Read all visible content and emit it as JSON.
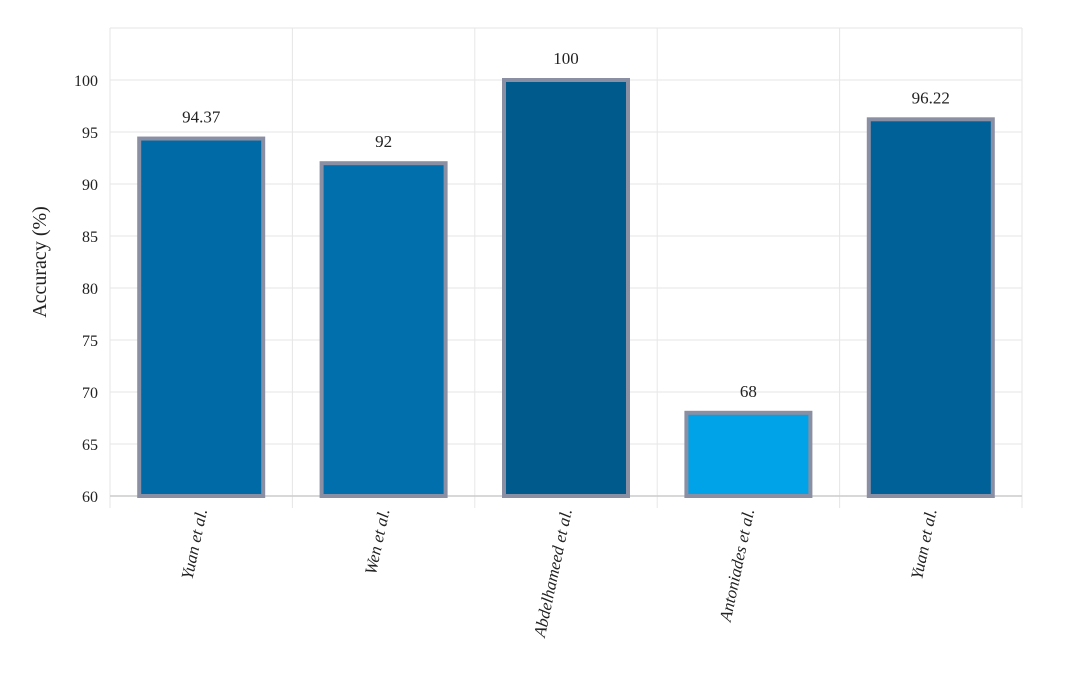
{
  "chart_data": {
    "type": "bar",
    "title": "",
    "xlabel": "",
    "ylabel": "Accuracy (%)",
    "ylim": [
      60,
      105
    ],
    "yticks": [
      60,
      65,
      70,
      75,
      80,
      85,
      90,
      95,
      100
    ],
    "grid": true,
    "categories": [
      "Yuan et al.",
      "Wen et al.",
      "Abdelhameed et al.",
      "Antoniades et al.",
      "Yuan et al."
    ],
    "values": [
      94.37,
      92,
      100,
      68,
      96.22
    ],
    "data_labels": [
      "94.37",
      "92",
      "100",
      "68",
      "96.22"
    ],
    "colors": {
      "bars": [
        "#006aa6",
        "#006fab",
        "#005a8c",
        "#00a2e8",
        "#006098"
      ],
      "bar_border": "#8a8fa3",
      "grid": "#e6e6e6",
      "axis": "#cccccc"
    }
  }
}
